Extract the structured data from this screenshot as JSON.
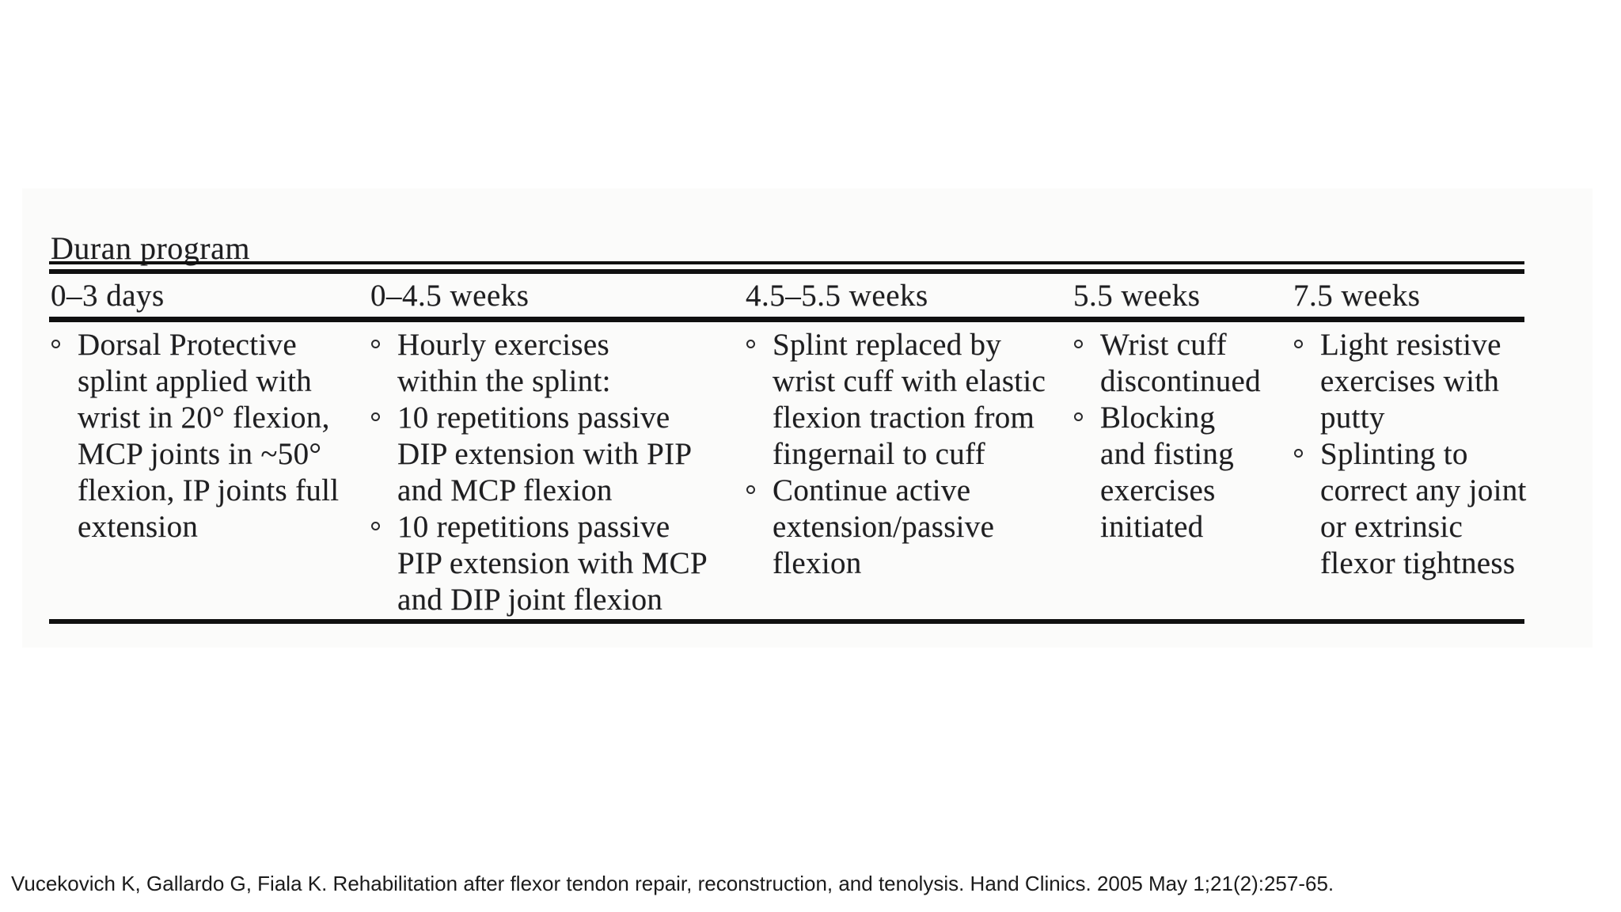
{
  "title": "Duran program",
  "table": {
    "columns": [
      {
        "header": "0–3 days",
        "items": [
          {
            "lines": [
              "Dorsal Protective",
              "splint applied with",
              "wrist in 20° flexion,",
              "MCP joints in ~50°",
              "flexion, IP joints full",
              "extension"
            ]
          }
        ]
      },
      {
        "header": "0–4.5 weeks",
        "items": [
          {
            "lines": [
              "Hourly exercises",
              "within the splint:"
            ]
          },
          {
            "lines": [
              "10 repetitions passive",
              "DIP extension with PIP",
              "and MCP flexion"
            ]
          },
          {
            "lines": [
              "10 repetitions passive",
              "PIP extension with MCP",
              "and DIP joint flexion"
            ]
          }
        ]
      },
      {
        "header": "4.5–5.5 weeks",
        "items": [
          {
            "lines": [
              "Splint replaced by",
              "wrist cuff with elastic",
              "flexion traction from",
              "fingernail to cuff"
            ]
          },
          {
            "lines": [
              "Continue active",
              "extension/passive",
              "flexion"
            ]
          }
        ]
      },
      {
        "header": "5.5 weeks",
        "items": [
          {
            "lines": [
              "Wrist cuff",
              "discontinued"
            ]
          },
          {
            "lines": [
              "Blocking",
              "and fisting",
              "exercises",
              "initiated"
            ]
          }
        ]
      },
      {
        "header": "7.5 weeks",
        "items": [
          {
            "lines": [
              "Light resistive",
              "exercises with",
              "putty"
            ]
          },
          {
            "lines": [
              "Splinting to",
              "correct any joint",
              "or extrinsic",
              "flexor tightness"
            ]
          }
        ]
      }
    ]
  },
  "citation": "Vucekovich K, Gallardo G, Fiala K. Rehabilitation after flexor tendon repair, reconstruction, and tenolysis. Hand Clinics. 2005 May 1;21(2):257-65.",
  "colors": {
    "text": "#1e1e20",
    "rule": "#101010",
    "background": "#ffffff",
    "scan_background": "#fbfbfa"
  }
}
